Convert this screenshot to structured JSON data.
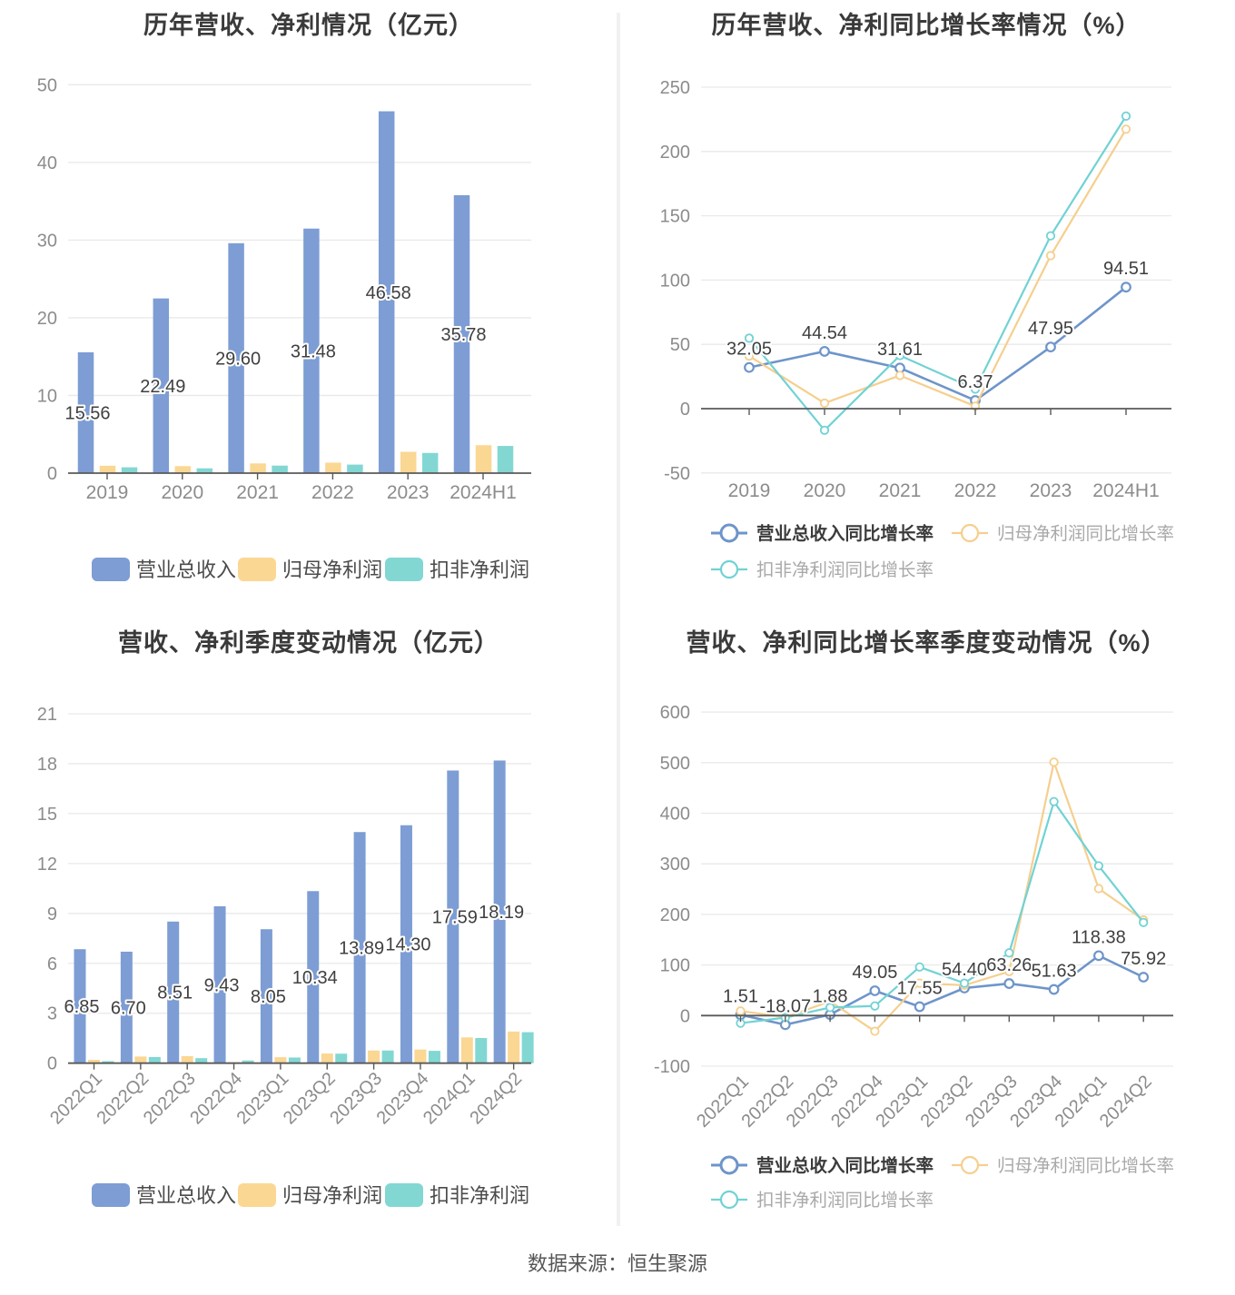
{
  "page": {
    "source_note": "数据来源：恒生聚源"
  },
  "colors": {
    "revenue_bar": "#7d9dd4",
    "net_profit_bar": "#fbd794",
    "deducted_net_profit_bar": "#82d7d3",
    "revenue_line": "#6e95ca",
    "net_profit_line": "#f5cf8e",
    "deducted_net_profit_line": "#71d2d4",
    "grid": "#e9e9e9",
    "axis": "#595959",
    "tick_text": "#8c8c8c",
    "value_label": "#3f3f3f",
    "legend_text_primary": "#3b3b3b",
    "legend_text_secondary": "#a9a9a9"
  },
  "chart_data": [
    {
      "id": "annual-revenue-profit",
      "type": "bar",
      "title": "历年营收、净利情况（亿元）",
      "categories": [
        "2019",
        "2020",
        "2021",
        "2022",
        "2023",
        "2024H1"
      ],
      "series": [
        {
          "name": "营业总收入",
          "color": "#7d9dd4",
          "values": [
            15.56,
            22.49,
            29.6,
            31.48,
            46.58,
            35.78
          ],
          "labels": [
            "15.56",
            "22.49",
            "29.60",
            "31.48",
            "46.58",
            "35.78"
          ]
        },
        {
          "name": "归母净利润",
          "color": "#fbd794",
          "values": [
            0.95,
            0.9,
            1.25,
            1.35,
            2.75,
            3.6
          ]
        },
        {
          "name": "扣非净利润",
          "color": "#82d7d3",
          "values": [
            0.75,
            0.62,
            0.97,
            1.1,
            2.6,
            3.5
          ]
        }
      ],
      "ylim": [
        0,
        50
      ],
      "yticks": [
        0,
        10,
        20,
        30,
        40,
        50
      ],
      "grid": true,
      "legend_position": "bottom"
    },
    {
      "id": "annual-growth-rate",
      "type": "line",
      "title": "历年营收、净利同比增长率情况（%）",
      "categories": [
        "2019",
        "2020",
        "2021",
        "2022",
        "2023",
        "2024H1"
      ],
      "series": [
        {
          "name": "营业总收入同比增长率",
          "color": "#6e95ca",
          "values": [
            32.05,
            44.54,
            31.61,
            6.37,
            47.95,
            94.51
          ],
          "labels": [
            "32.05",
            "44.54",
            "31.61",
            "6.37",
            "47.95",
            "94.51"
          ]
        },
        {
          "name": "归母净利润同比增长率",
          "color": "#f5cf8e",
          "values": [
            40.9,
            4.3,
            25.8,
            1.9,
            119.0,
            217.3
          ]
        },
        {
          "name": "扣非净利润同比增长率",
          "color": "#71d2d4",
          "values": [
            54.8,
            -16.8,
            41.3,
            15.2,
            134.4,
            227.5
          ]
        }
      ],
      "ylim": [
        -50,
        250
      ],
      "yticks": [
        -50,
        0,
        50,
        100,
        150,
        200,
        250
      ],
      "grid": true,
      "legend_position": "bottom"
    },
    {
      "id": "quarterly-revenue-profit",
      "type": "bar",
      "title": "营收、净利季度变动情况（亿元）",
      "categories": [
        "2022Q1",
        "2022Q2",
        "2022Q3",
        "2022Q4",
        "2023Q1",
        "2023Q2",
        "2023Q3",
        "2023Q4",
        "2024Q1",
        "2024Q2"
      ],
      "series": [
        {
          "name": "营业总收入",
          "color": "#7d9dd4",
          "values": [
            6.85,
            6.7,
            8.51,
            9.43,
            8.05,
            10.34,
            13.89,
            14.3,
            17.59,
            18.19
          ],
          "labels": [
            "6.85",
            "6.70",
            "8.51",
            "9.43",
            "8.05",
            "10.34",
            "13.89",
            "14.30",
            "17.59",
            "18.19"
          ]
        },
        {
          "name": "归母净利润",
          "color": "#fbd794",
          "values": [
            0.2,
            0.4,
            0.42,
            0.06,
            0.36,
            0.58,
            0.76,
            0.82,
            1.55,
            1.9
          ]
        },
        {
          "name": "扣非净利润",
          "color": "#82d7d3",
          "values": [
            0.12,
            0.37,
            0.3,
            0.16,
            0.34,
            0.57,
            0.76,
            0.74,
            1.51,
            1.86
          ]
        }
      ],
      "ylim": [
        0,
        21
      ],
      "yticks": [
        0,
        3,
        6,
        9,
        12,
        15,
        18,
        21
      ],
      "grid": true,
      "rotated_x_labels": true,
      "legend_position": "bottom"
    },
    {
      "id": "quarterly-growth-rate",
      "type": "line",
      "title": "营收、净利同比增长率季度变动情况（%）",
      "categories": [
        "2022Q1",
        "2022Q2",
        "2022Q3",
        "2022Q4",
        "2023Q1",
        "2023Q2",
        "2023Q3",
        "2023Q4",
        "2024Q1",
        "2024Q2"
      ],
      "series": [
        {
          "name": "营业总收入同比增长率",
          "color": "#6e95ca",
          "values": [
            1.51,
            -18.07,
            1.88,
            49.05,
            17.55,
            54.4,
            63.26,
            51.63,
            118.38,
            75.92
          ],
          "labels": [
            "1.51",
            "-18.07",
            "1.88",
            "49.05",
            "17.55",
            "54.40",
            "63.26",
            "51.63",
            "118.38",
            "75.92"
          ]
        },
        {
          "name": "归母净利润同比增长率",
          "color": "#f5cf8e",
          "values": [
            9,
            -3,
            28,
            -31,
            64,
            60,
            87,
            501,
            251,
            189
          ]
        },
        {
          "name": "扣非净利润同比增长率",
          "color": "#71d2d4",
          "values": [
            -15,
            -4,
            16,
            19,
            96,
            64,
            124,
            423,
            296,
            184
          ]
        }
      ],
      "ylim": [
        -100,
        600
      ],
      "yticks": [
        -100,
        0,
        100,
        200,
        300,
        400,
        500,
        600
      ],
      "grid": true,
      "rotated_x_labels": true,
      "legend_position": "bottom"
    }
  ]
}
